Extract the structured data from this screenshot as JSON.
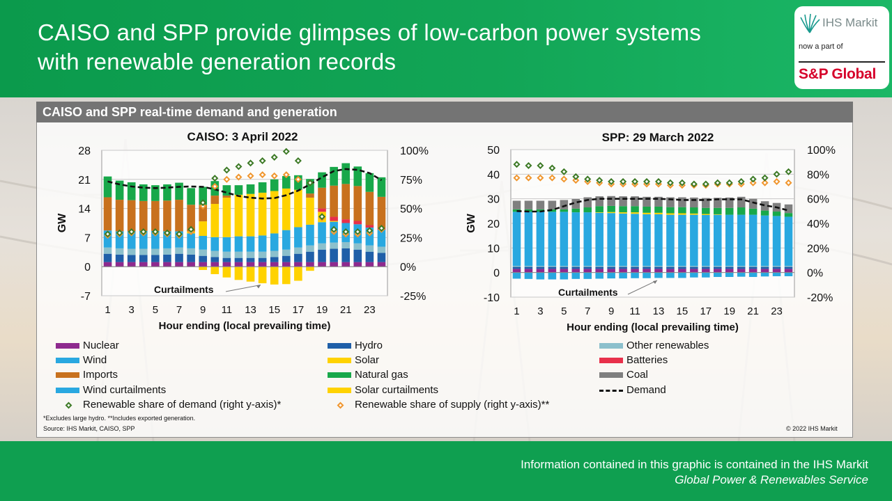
{
  "header": {
    "title": "CAISO and SPP provide glimpses of low-carbon power systems with renewable generation records",
    "logo": {
      "brand": "IHS Markit",
      "subtitle": "now a part of",
      "parent": "S&P Global"
    }
  },
  "panel": {
    "title": "CAISO and SPP real-time demand and generation"
  },
  "colors": {
    "nuclear": "#8e2a8e",
    "hydro": "#1f5fa8",
    "wind": "#29a8e0",
    "solar": "#ffd200",
    "imports": "#c8711e",
    "natural_gas": "#18a84a",
    "other_renewables": "#8cc0cc",
    "batteries": "#e8304a",
    "coal": "#7f7f7f",
    "wind_curtailments": "#29a8e0",
    "solar_curtailments": "#ffd200",
    "renewable_share_demand": "#3d7a26",
    "renewable_share_supply": "#f0962e",
    "demand": "#111111"
  },
  "legend": {
    "nuclear": "Nuclear",
    "hydro": "Hydro",
    "other_renewables": "Other renewables",
    "wind": "Wind",
    "solar": "Solar",
    "batteries": "Batteries",
    "imports": "Imports",
    "natural_gas": "Natural gas",
    "coal": "Coal",
    "wind_curtailments": "Wind curtailments",
    "solar_curtailments": "Solar curtailments",
    "demand": "Demand",
    "renewable_share_demand": "Renewable share of demand (right y-axis)*",
    "renewable_share_supply": "Renewable share of supply (right y-axis)**"
  },
  "notes": {
    "footnote": "*Excludes large hydro. **Includes exported generation.",
    "source": "Source: IHS Markit, CAISO, SPP",
    "copyright": "© 2022 IHS Markit"
  },
  "footer": {
    "line1": "Information contained in this graphic is contained in the IHS Markit",
    "line2": "Global Power & Renewables Service"
  },
  "chart_data": [
    {
      "type": "bar",
      "title": "CAISO: 3 April 2022",
      "xlabel": "Hour ending (local prevailing time)",
      "ylabel": "GW",
      "ylim": [
        -7,
        28
      ],
      "yticks": [
        -7,
        0,
        7,
        14,
        21,
        28
      ],
      "y2lim": [
        -0.25,
        1.0
      ],
      "y2ticks": [
        "-25%",
        "0%",
        "25%",
        "50%",
        "75%",
        "100%"
      ],
      "x": [
        1,
        2,
        3,
        4,
        5,
        6,
        7,
        8,
        9,
        10,
        11,
        12,
        13,
        14,
        15,
        16,
        17,
        18,
        19,
        20,
        21,
        22,
        23,
        24
      ],
      "xtick_labels": [
        "1",
        "3",
        "5",
        "7",
        "9",
        "11",
        "13",
        "15",
        "17",
        "19",
        "21",
        "23"
      ],
      "annotation": "Curtailments",
      "series": [
        {
          "name": "Nuclear",
          "key": "nuclear",
          "values": [
            1.1,
            1.1,
            1.1,
            1.1,
            1.1,
            1.1,
            1.1,
            1.1,
            1.1,
            1.1,
            1.1,
            1.1,
            1.1,
            1.1,
            1.1,
            1.1,
            1.1,
            1.1,
            1.1,
            1.1,
            1.1,
            1.1,
            1.1,
            1.1
          ]
        },
        {
          "name": "Hydro",
          "key": "hydro",
          "values": [
            2.0,
            1.8,
            1.7,
            1.7,
            1.7,
            1.8,
            2.0,
            1.8,
            1.5,
            1.2,
            1.0,
            1.0,
            1.0,
            1.0,
            1.2,
            1.5,
            2.0,
            2.5,
            3.0,
            3.2,
            3.3,
            3.0,
            2.5,
            2.2
          ]
        },
        {
          "name": "Other renewables",
          "key": "other_renewables",
          "values": [
            1.5,
            1.5,
            1.5,
            1.5,
            1.5,
            1.5,
            1.5,
            1.5,
            1.5,
            1.5,
            1.5,
            1.5,
            1.5,
            1.5,
            1.5,
            1.5,
            1.5,
            1.5,
            1.5,
            1.5,
            1.5,
            1.5,
            1.5,
            1.5
          ]
        },
        {
          "name": "Wind",
          "key": "wind",
          "values": [
            4.1,
            4.1,
            4.2,
            4.3,
            4.3,
            4.1,
            3.9,
            3.6,
            3.3,
            3.3,
            3.5,
            3.7,
            3.7,
            3.9,
            4.2,
            4.7,
            4.9,
            5.0,
            5.1,
            5.0,
            4.6,
            4.6,
            4.3,
            4.1
          ]
        },
        {
          "name": "Solar",
          "key": "solar",
          "values": [
            0,
            0,
            0,
            0,
            0,
            0,
            0,
            0.5,
            3.5,
            8,
            9.5,
            10,
            10.2,
            10.3,
            10.2,
            10.0,
            9.0,
            6.5,
            2.5,
            0.2,
            0,
            0,
            0,
            0
          ]
        },
        {
          "name": "Batteries",
          "key": "batteries",
          "values": [
            0,
            0,
            0,
            0,
            0,
            0,
            0,
            0,
            0,
            0,
            0,
            0,
            0,
            0,
            0,
            0,
            0,
            0,
            0.8,
            1.0,
            0.9,
            0.8,
            0.6,
            0.3
          ]
        },
        {
          "name": "Imports",
          "key": "imports",
          "values": [
            8.0,
            7.6,
            7.5,
            7.2,
            7.2,
            7.4,
            7.6,
            6.4,
            4.0,
            2.0,
            0.5,
            0,
            0,
            0,
            0,
            0,
            0,
            1.0,
            5.0,
            7.5,
            8.5,
            8.4,
            8.0,
            7.6
          ]
        },
        {
          "name": "Natural gas",
          "key": "natural_gas",
          "values": [
            5.0,
            4.6,
            4.3,
            4.0,
            3.8,
            3.9,
            4.1,
            4.0,
            4.3,
            3.5,
            2.5,
            2.3,
            2.3,
            2.5,
            2.8,
            3.0,
            3.5,
            3.5,
            3.7,
            4.5,
            5.0,
            4.7,
            4.5,
            4.7
          ]
        },
        {
          "name": "Wind curtailments",
          "key": "wind_curtailments",
          "values": [
            0,
            0,
            0,
            0,
            0,
            0,
            0,
            0,
            0,
            0,
            0,
            0,
            0,
            0,
            0,
            0,
            0,
            0,
            0,
            0,
            0,
            0,
            0,
            0
          ]
        },
        {
          "name": "Solar curtailments",
          "key": "solar_curtailments",
          "values": [
            0,
            0,
            0,
            0,
            0,
            0,
            0,
            0,
            -0.8,
            -1.8,
            -2.6,
            -3.2,
            -3.6,
            -4.0,
            -4.3,
            -4.2,
            -3.4,
            -1.0,
            0,
            0,
            0,
            0,
            0,
            0
          ]
        },
        {
          "name": "Demand",
          "key": "demand",
          "values": [
            20.5,
            19.8,
            19.3,
            19.0,
            18.9,
            19.0,
            19.2,
            19.3,
            19.2,
            18.6,
            17.8,
            17.0,
            16.6,
            16.4,
            16.5,
            17.2,
            18.3,
            19.8,
            21.5,
            23.0,
            23.5,
            23.3,
            22.5,
            20.8
          ]
        },
        {
          "name": "Renewable share of demand (right y-axis)*",
          "key": "renewable_share_demand",
          "values": [
            0.28,
            0.29,
            0.3,
            0.3,
            0.3,
            0.29,
            0.28,
            0.32,
            0.55,
            0.76,
            0.83,
            0.86,
            0.89,
            0.91,
            0.94,
            0.99,
            0.91,
            0.72,
            0.43,
            0.32,
            0.3,
            0.3,
            0.31,
            0.33
          ]
        },
        {
          "name": "Renewable share of supply (right y-axis)**",
          "key": "renewable_share_supply",
          "values": [
            0.27,
            0.28,
            0.29,
            0.29,
            0.29,
            0.28,
            0.27,
            0.3,
            0.52,
            0.69,
            0.75,
            0.77,
            0.78,
            0.79,
            0.78,
            0.79,
            0.75,
            0.72,
            0.42,
            0.3,
            0.28,
            0.28,
            0.29,
            0.32
          ]
        }
      ]
    },
    {
      "type": "bar",
      "title": "SPP: 29 March 2022",
      "xlabel": "Hour ending (local prevailing time)",
      "ylabel": "GW",
      "ylim": [
        -10,
        50
      ],
      "yticks": [
        -10,
        0,
        10,
        20,
        30,
        40,
        50
      ],
      "y2lim": [
        -0.2,
        1.0
      ],
      "y2ticks": [
        "-20%",
        "0%",
        "20%",
        "40%",
        "60%",
        "80%",
        "100%"
      ],
      "x": [
        1,
        2,
        3,
        4,
        5,
        6,
        7,
        8,
        9,
        10,
        11,
        12,
        13,
        14,
        15,
        16,
        17,
        18,
        19,
        20,
        21,
        22,
        23,
        24
      ],
      "xtick_labels": [
        "1",
        "3",
        "5",
        "7",
        "9",
        "11",
        "13",
        "15",
        "17",
        "19",
        "21",
        "23"
      ],
      "annotation": "Curtailments",
      "series": [
        {
          "name": "Nuclear",
          "key": "nuclear",
          "values": [
            1.5,
            1.5,
            1.5,
            1.5,
            1.5,
            1.5,
            1.5,
            1.5,
            1.5,
            1.5,
            1.5,
            1.5,
            1.5,
            1.5,
            1.5,
            1.5,
            1.5,
            1.5,
            1.5,
            1.5,
            1.5,
            1.5,
            1.5,
            1.5
          ]
        },
        {
          "name": "Hydro",
          "key": "hydro",
          "values": [
            0.8,
            0.8,
            0.8,
            0.8,
            0.8,
            0.8,
            0.8,
            0.8,
            0.8,
            0.8,
            0.8,
            0.8,
            0.8,
            0.8,
            0.8,
            0.8,
            0.8,
            0.8,
            0.8,
            0.8,
            0.8,
            0.8,
            0.8,
            0.8
          ]
        },
        {
          "name": "Other renewables",
          "key": "other_renewables",
          "values": [
            0.4,
            0.4,
            0.4,
            0.4,
            0.4,
            0.4,
            0.4,
            0.4,
            0.4,
            0.4,
            0.4,
            0.4,
            0.4,
            0.4,
            0.4,
            0.4,
            0.4,
            0.4,
            0.4,
            0.4,
            0.4,
            0.4,
            0.4,
            0.4
          ]
        },
        {
          "name": "Wind",
          "key": "wind",
          "values": [
            22,
            22,
            22,
            22,
            22,
            21.8,
            21.8,
            21.6,
            21.5,
            21.3,
            21.2,
            21.0,
            21.0,
            20.8,
            20.8,
            20.8,
            20.7,
            20.8,
            20.8,
            20.8,
            20.8,
            20.5,
            20.3,
            20.0
          ]
        },
        {
          "name": "Solar",
          "key": "solar",
          "values": [
            0,
            0,
            0,
            0,
            0,
            0,
            0,
            0.2,
            0.4,
            0.5,
            0.6,
            0.6,
            0.6,
            0.6,
            0.6,
            0.5,
            0.4,
            0.2,
            0,
            0,
            0,
            0,
            0,
            0
          ]
        },
        {
          "name": "Batteries",
          "key": "batteries",
          "values": [
            0,
            0,
            0,
            0,
            0,
            0,
            0,
            0,
            0,
            0,
            0,
            0,
            0,
            0,
            0,
            0,
            0,
            0,
            0,
            0,
            0,
            0,
            0,
            0
          ]
        },
        {
          "name": "Imports",
          "key": "imports",
          "values": [
            0,
            0,
            0,
            0,
            0,
            0,
            0,
            0,
            0,
            0,
            0,
            0,
            0,
            0,
            0,
            0,
            0,
            0,
            0,
            0,
            0,
            0,
            0,
            0
          ]
        },
        {
          "name": "Natural gas",
          "key": "natural_gas",
          "values": [
            1.0,
            1.0,
            1.0,
            1.0,
            1.0,
            1.5,
            2.0,
            2.5,
            2.5,
            2.5,
            2.5,
            2.5,
            2.5,
            2.5,
            2.5,
            2.5,
            2.5,
            2.6,
            2.8,
            3.0,
            2.5,
            2.0,
            1.8,
            1.5
          ]
        },
        {
          "name": "Coal",
          "key": "coal",
          "values": [
            3.5,
            3.5,
            3.5,
            3.5,
            3.8,
            3.9,
            4.1,
            4.0,
            4.0,
            4.0,
            4.0,
            4.0,
            4.0,
            4.0,
            4.0,
            4.0,
            4.0,
            4.1,
            4.2,
            4.3,
            4.0,
            3.8,
            3.5,
            3.5
          ]
        },
        {
          "name": "Wind curtailments",
          "key": "wind_curtailments",
          "values": [
            -2.5,
            -2.6,
            -2.8,
            -2.8,
            -2.8,
            -2.6,
            -2.6,
            -2.5,
            -2.4,
            -2.4,
            -2.3,
            -2.3,
            -2.2,
            -2.2,
            -2.2,
            -2.0,
            -2.0,
            -1.8,
            -1.8,
            -1.7,
            -1.8,
            -1.6,
            -1.5,
            -1.5
          ]
        },
        {
          "name": "Demand",
          "key": "demand",
          "values": [
            25.0,
            24.8,
            24.8,
            25.5,
            27.0,
            28.5,
            29.5,
            30.0,
            30.0,
            30.0,
            30.0,
            30.0,
            30.0,
            29.8,
            29.5,
            29.5,
            29.5,
            29.8,
            29.8,
            29.8,
            28.5,
            27.3,
            26.5,
            25.2
          ]
        },
        {
          "name": "Renewable share of demand (right y-axis)*",
          "key": "renewable_share_demand",
          "values": [
            0.88,
            0.87,
            0.87,
            0.85,
            0.82,
            0.78,
            0.76,
            0.75,
            0.74,
            0.74,
            0.74,
            0.74,
            0.74,
            0.73,
            0.73,
            0.72,
            0.72,
            0.73,
            0.73,
            0.74,
            0.76,
            0.77,
            0.8,
            0.82
          ]
        },
        {
          "name": "Renewable share of supply (right y-axis)**",
          "key": "renewable_share_supply",
          "values": [
            0.77,
            0.77,
            0.77,
            0.77,
            0.76,
            0.75,
            0.74,
            0.73,
            0.72,
            0.72,
            0.72,
            0.72,
            0.72,
            0.71,
            0.71,
            0.71,
            0.71,
            0.72,
            0.72,
            0.72,
            0.73,
            0.73,
            0.74,
            0.73
          ]
        }
      ]
    }
  ]
}
